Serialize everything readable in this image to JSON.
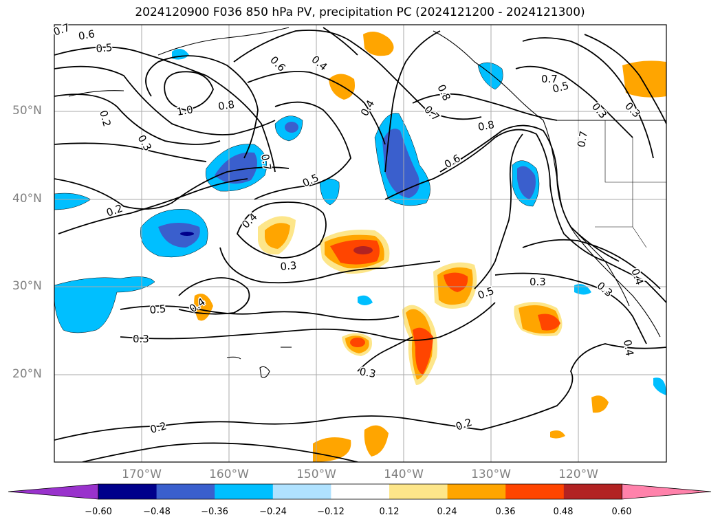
{
  "title": "2024120900 F036 850 hPa PV, precipitation PC (2024121200 - 2024121300)",
  "lat_labels": [
    "50°N",
    "40°N",
    "30°N",
    "20°N"
  ],
  "lon_labels": [
    "170°W",
    "160°W",
    "150°W",
    "140°W",
    "130°W",
    "120°W"
  ],
  "contour_labels": [
    "0.7",
    "0.6",
    "0.5",
    "0.2",
    "0.3",
    "1.0",
    "0.8",
    "0.6",
    "0.4",
    "0.4",
    "0.7",
    "0.5",
    "0.4",
    "0.3",
    "0.2",
    "0.5",
    "0.4",
    "0.3",
    "0.6",
    "0.7",
    "0.8",
    "0.8",
    "0.7",
    "0.5",
    "0.3",
    "0.7",
    "0.3",
    "0.5",
    "0.3",
    "0.3",
    "0.4",
    "0.4",
    "0.3",
    "0.2",
    "0.2"
  ],
  "colorbar": {
    "ticks": [
      "−0.60",
      "−0.48",
      "−0.36",
      "−0.24",
      "−0.12",
      "0.12",
      "0.24",
      "0.36",
      "0.48",
      "0.60"
    ],
    "colors": [
      "#9932cc",
      "#00008b",
      "#3a5fcd",
      "#00bfff",
      "#b0e2ff",
      "#ffffff",
      "#fde68a",
      "#ffa500",
      "#ff4500",
      "#b22222",
      "#ff82ab"
    ]
  },
  "colors": {
    "neg_light": "#b0e2ff",
    "neg_mid": "#00bfff",
    "neg_strong": "#3a5fcd",
    "neg_deep": "#00008b",
    "pos_light": "#fde68a",
    "pos_mid": "#ffa500",
    "pos_strong": "#ff4500",
    "pos_deep": "#b22222"
  }
}
